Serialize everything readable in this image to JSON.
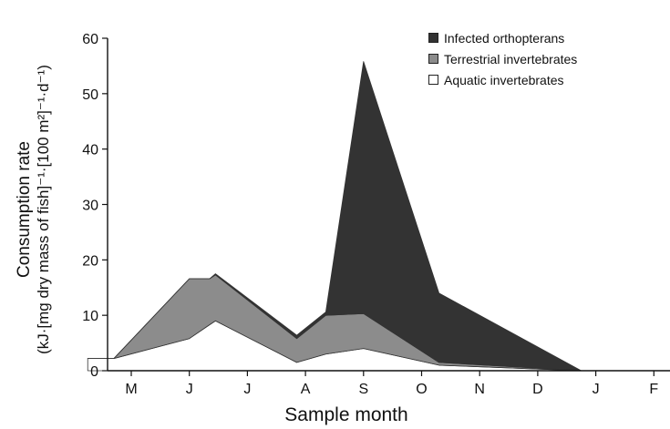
{
  "chart_data": {
    "type": "area",
    "stacked": true,
    "xlabel": "Sample month",
    "ylabel_line1": "Consumption rate",
    "ylabel_line2": "(kJ·[mg dry mass of fish]⁻¹·[100 m²]⁻¹·d⁻¹)",
    "ylim": [
      0,
      60
    ],
    "yticks": [
      "0",
      "10",
      "20",
      "30",
      "40",
      "50",
      "60"
    ],
    "xticks": [
      "M",
      "J",
      "J",
      "A",
      "S",
      "O",
      "N",
      "D",
      "J",
      "F"
    ],
    "x": [
      -0.75,
      -0.3,
      1.0,
      1.35,
      1.45,
      2.85,
      3.35,
      4.0,
      5.3,
      7.75,
      9.75
    ],
    "series": [
      {
        "name": "Aquatic invertebrates",
        "color": "#ffffff",
        "values": [
          2.2,
          2.2,
          5.8,
          8.3,
          9.0,
          1.5,
          3.0,
          4.0,
          1.0,
          0,
          0
        ]
      },
      {
        "name": "Terrestrial invertebrates",
        "color": "#8c8c8c",
        "values": [
          0,
          0,
          10.8,
          8.3,
          8.3,
          4.3,
          7.0,
          6.3,
          0.5,
          0,
          0
        ]
      },
      {
        "name": "Infected orthopterans",
        "color": "#333333",
        "values": [
          0,
          0,
          0,
          0,
          0.2,
          0.6,
          0.6,
          45.5,
          12.5,
          0,
          0
        ]
      }
    ],
    "legend": [
      "Infected orthopterans",
      "Terrestrial invertebrates",
      "Aquatic invertebrates"
    ],
    "legend_colors": [
      "#333333",
      "#8c8c8c",
      "#ffffff"
    ],
    "grid": false,
    "legend_position": "top-right"
  }
}
